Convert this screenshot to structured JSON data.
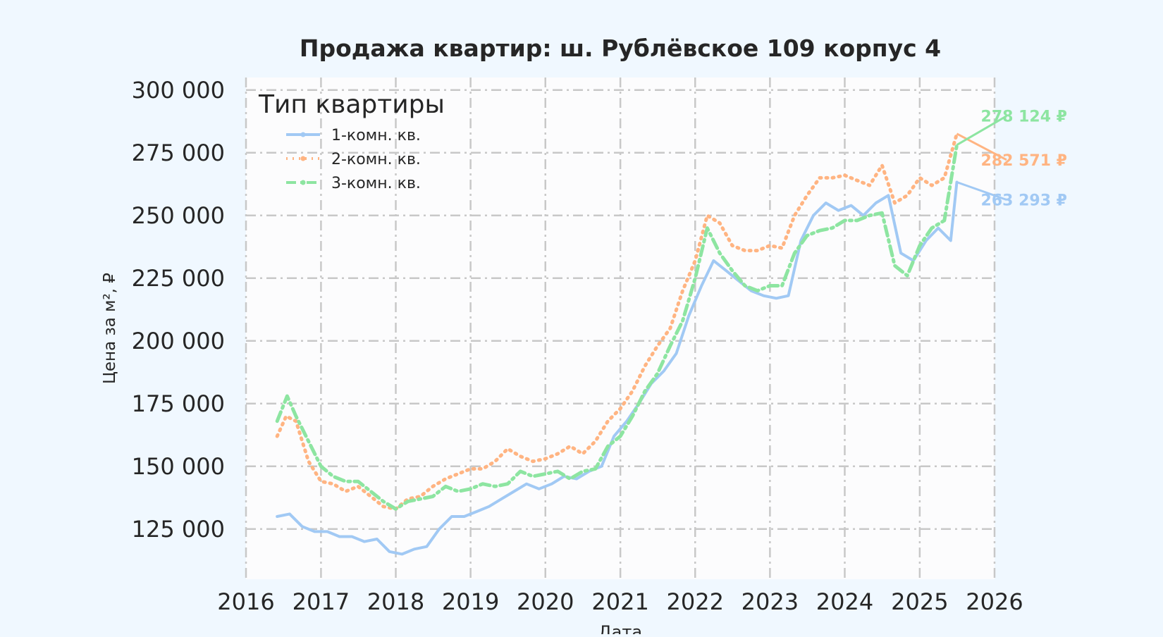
{
  "chart_data": {
    "type": "line",
    "title": "Продажа квартир: ш. Рублёвское 109 корпус 4",
    "xlabel": "Дата",
    "ylabel": "Цена за м², ₽",
    "xlim": [
      "2016-01-01",
      "2026-01-01"
    ],
    "ylim": [
      105000,
      305000
    ],
    "x_ticks": [
      "2016",
      "2017",
      "2018",
      "2019",
      "2020",
      "2021",
      "2022",
      "2023",
      "2024",
      "2025",
      "2026"
    ],
    "y_ticks": [
      125000,
      150000,
      175000,
      200000,
      225000,
      250000,
      275000,
      300000
    ],
    "y_tick_labels": [
      "125 000",
      "150 000",
      "175 000",
      "200 000",
      "225 000",
      "250 000",
      "275 000",
      "300 000"
    ],
    "grid": true,
    "legend": {
      "title": "Тип квартиры",
      "position": "top-left"
    },
    "colors": {
      "background": "#f0f8ff",
      "plot_background": "#fcfcfd",
      "grid": "#c8c8c8",
      "text": "#262626"
    },
    "series": [
      {
        "name": "1-комн. кв.",
        "color": "#a1c9f4",
        "style": "solid",
        "end_label": "263 293 ₽",
        "points": [
          [
            "2016-06-01",
            130000
          ],
          [
            "2016-08-01",
            131000
          ],
          [
            "2016-10-01",
            126000
          ],
          [
            "2016-12-01",
            124000
          ],
          [
            "2017-02-01",
            124000
          ],
          [
            "2017-04-01",
            122000
          ],
          [
            "2017-06-01",
            122000
          ],
          [
            "2017-08-01",
            120000
          ],
          [
            "2017-10-01",
            121000
          ],
          [
            "2017-12-01",
            116000
          ],
          [
            "2018-02-01",
            115000
          ],
          [
            "2018-04-01",
            117000
          ],
          [
            "2018-06-01",
            118000
          ],
          [
            "2018-08-01",
            125000
          ],
          [
            "2018-10-01",
            130000
          ],
          [
            "2018-12-01",
            130000
          ],
          [
            "2019-02-01",
            132000
          ],
          [
            "2019-04-01",
            134000
          ],
          [
            "2019-06-01",
            137000
          ],
          [
            "2019-08-01",
            140000
          ],
          [
            "2019-10-01",
            143000
          ],
          [
            "2019-12-01",
            141000
          ],
          [
            "2020-02-01",
            143000
          ],
          [
            "2020-04-01",
            146000
          ],
          [
            "2020-06-01",
            145000
          ],
          [
            "2020-08-01",
            148000
          ],
          [
            "2020-10-01",
            150000
          ],
          [
            "2020-12-01",
            162000
          ],
          [
            "2021-02-01",
            168000
          ],
          [
            "2021-04-01",
            175000
          ],
          [
            "2021-06-01",
            183000
          ],
          [
            "2021-08-01",
            188000
          ],
          [
            "2021-10-01",
            195000
          ],
          [
            "2021-12-01",
            210000
          ],
          [
            "2022-02-01",
            222000
          ],
          [
            "2022-04-01",
            232000
          ],
          [
            "2022-06-01",
            228000
          ],
          [
            "2022-08-01",
            224000
          ],
          [
            "2022-10-01",
            220000
          ],
          [
            "2022-12-01",
            218000
          ],
          [
            "2023-02-01",
            217000
          ],
          [
            "2023-04-01",
            218000
          ],
          [
            "2023-06-01",
            240000
          ],
          [
            "2023-08-01",
            250000
          ],
          [
            "2023-10-01",
            255000
          ],
          [
            "2023-12-01",
            252000
          ],
          [
            "2024-02-01",
            254000
          ],
          [
            "2024-04-01",
            250000
          ],
          [
            "2024-06-01",
            255000
          ],
          [
            "2024-08-01",
            258000
          ],
          [
            "2024-10-01",
            235000
          ],
          [
            "2024-12-01",
            232000
          ],
          [
            "2025-02-01",
            240000
          ],
          [
            "2025-04-01",
            245000
          ],
          [
            "2025-06-01",
            240000
          ],
          [
            "2025-07-01",
            263293
          ]
        ]
      },
      {
        "name": "2-комн. кв.",
        "color": "#ffb482",
        "style": "dotted",
        "end_label": "282 571 ₽",
        "points": [
          [
            "2016-06-01",
            162000
          ],
          [
            "2016-07-15",
            170000
          ],
          [
            "2016-09-01",
            168000
          ],
          [
            "2016-11-01",
            152000
          ],
          [
            "2017-01-01",
            144000
          ],
          [
            "2017-03-01",
            143000
          ],
          [
            "2017-05-01",
            140000
          ],
          [
            "2017-07-01",
            142000
          ],
          [
            "2017-09-01",
            138000
          ],
          [
            "2017-11-01",
            134000
          ],
          [
            "2018-01-01",
            133000
          ],
          [
            "2018-03-01",
            137000
          ],
          [
            "2018-05-01",
            138000
          ],
          [
            "2018-07-01",
            142000
          ],
          [
            "2018-09-01",
            145000
          ],
          [
            "2018-11-01",
            147000
          ],
          [
            "2019-01-01",
            149000
          ],
          [
            "2019-03-01",
            149000
          ],
          [
            "2019-05-01",
            152000
          ],
          [
            "2019-07-01",
            157000
          ],
          [
            "2019-09-01",
            154000
          ],
          [
            "2019-11-01",
            152000
          ],
          [
            "2020-01-01",
            153000
          ],
          [
            "2020-03-01",
            155000
          ],
          [
            "2020-05-01",
            158000
          ],
          [
            "2020-07-01",
            155000
          ],
          [
            "2020-09-01",
            160000
          ],
          [
            "2020-11-01",
            168000
          ],
          [
            "2021-01-01",
            173000
          ],
          [
            "2021-03-01",
            180000
          ],
          [
            "2021-05-01",
            190000
          ],
          [
            "2021-07-01",
            198000
          ],
          [
            "2021-09-01",
            205000
          ],
          [
            "2021-11-01",
            220000
          ],
          [
            "2022-01-01",
            232000
          ],
          [
            "2022-03-01",
            250000
          ],
          [
            "2022-05-01",
            247000
          ],
          [
            "2022-07-01",
            238000
          ],
          [
            "2022-09-01",
            236000
          ],
          [
            "2022-11-01",
            236000
          ],
          [
            "2023-01-01",
            238000
          ],
          [
            "2023-03-01",
            237000
          ],
          [
            "2023-05-01",
            250000
          ],
          [
            "2023-07-01",
            258000
          ],
          [
            "2023-09-01",
            265000
          ],
          [
            "2023-11-01",
            265000
          ],
          [
            "2024-01-01",
            266000
          ],
          [
            "2024-03-01",
            264000
          ],
          [
            "2024-05-01",
            262000
          ],
          [
            "2024-07-01",
            270000
          ],
          [
            "2024-09-01",
            255000
          ],
          [
            "2024-11-01",
            258000
          ],
          [
            "2025-01-01",
            265000
          ],
          [
            "2025-03-01",
            262000
          ],
          [
            "2025-05-01",
            265000
          ],
          [
            "2025-07-01",
            282571
          ]
        ]
      },
      {
        "name": "3-комн. кв.",
        "color": "#8de5a1",
        "style": "dashdot",
        "end_label": "278 124 ₽",
        "points": [
          [
            "2016-06-01",
            168000
          ],
          [
            "2016-07-20",
            178000
          ],
          [
            "2016-09-01",
            170000
          ],
          [
            "2016-11-01",
            160000
          ],
          [
            "2017-01-01",
            150000
          ],
          [
            "2017-03-01",
            146000
          ],
          [
            "2017-05-01",
            144000
          ],
          [
            "2017-07-01",
            144000
          ],
          [
            "2017-09-01",
            140000
          ],
          [
            "2017-11-01",
            136000
          ],
          [
            "2018-01-01",
            133000
          ],
          [
            "2018-03-01",
            136000
          ],
          [
            "2018-05-01",
            137000
          ],
          [
            "2018-07-01",
            138000
          ],
          [
            "2018-09-01",
            142000
          ],
          [
            "2018-11-01",
            140000
          ],
          [
            "2019-01-01",
            141000
          ],
          [
            "2019-03-01",
            143000
          ],
          [
            "2019-05-01",
            142000
          ],
          [
            "2019-07-01",
            143000
          ],
          [
            "2019-09-01",
            148000
          ],
          [
            "2019-11-01",
            146000
          ],
          [
            "2020-01-01",
            147000
          ],
          [
            "2020-03-01",
            148000
          ],
          [
            "2020-05-01",
            145000
          ],
          [
            "2020-07-01",
            148000
          ],
          [
            "2020-09-01",
            149000
          ],
          [
            "2020-11-01",
            158000
          ],
          [
            "2021-01-01",
            162000
          ],
          [
            "2021-03-01",
            170000
          ],
          [
            "2021-05-01",
            180000
          ],
          [
            "2021-07-01",
            187000
          ],
          [
            "2021-09-01",
            198000
          ],
          [
            "2021-11-01",
            208000
          ],
          [
            "2022-01-01",
            225000
          ],
          [
            "2022-03-01",
            245000
          ],
          [
            "2022-05-01",
            235000
          ],
          [
            "2022-07-01",
            228000
          ],
          [
            "2022-09-01",
            222000
          ],
          [
            "2022-11-01",
            220000
          ],
          [
            "2023-01-01",
            222000
          ],
          [
            "2023-03-01",
            222000
          ],
          [
            "2023-05-01",
            235000
          ],
          [
            "2023-07-01",
            242000
          ],
          [
            "2023-09-01",
            244000
          ],
          [
            "2023-11-01",
            245000
          ],
          [
            "2024-01-01",
            248000
          ],
          [
            "2024-03-01",
            248000
          ],
          [
            "2024-05-01",
            250000
          ],
          [
            "2024-07-01",
            251000
          ],
          [
            "2024-09-01",
            230000
          ],
          [
            "2024-11-01",
            226000
          ],
          [
            "2025-01-01",
            238000
          ],
          [
            "2025-03-01",
            245000
          ],
          [
            "2025-05-01",
            248000
          ],
          [
            "2025-07-01",
            278124
          ]
        ]
      }
    ]
  }
}
